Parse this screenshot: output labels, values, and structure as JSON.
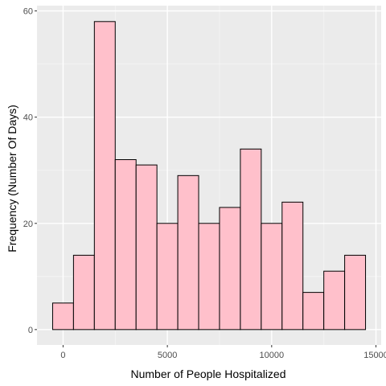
{
  "chart_data": {
    "type": "bar",
    "subtype": "histogram",
    "title": "",
    "xlabel": "Number of People Hospitalized",
    "ylabel": "Frequency (Number Of Days)",
    "bin_width": 1000,
    "bins": [
      {
        "x_start": -500,
        "x_end": 500,
        "count": 5
      },
      {
        "x_start": 500,
        "x_end": 1500,
        "count": 14
      },
      {
        "x_start": 1500,
        "x_end": 2500,
        "count": 58
      },
      {
        "x_start": 2500,
        "x_end": 3500,
        "count": 32
      },
      {
        "x_start": 3500,
        "x_end": 4500,
        "count": 31
      },
      {
        "x_start": 4500,
        "x_end": 5500,
        "count": 20
      },
      {
        "x_start": 5500,
        "x_end": 6500,
        "count": 29
      },
      {
        "x_start": 6500,
        "x_end": 7500,
        "count": 20
      },
      {
        "x_start": 7500,
        "x_end": 8500,
        "count": 23
      },
      {
        "x_start": 8500,
        "x_end": 9500,
        "count": 34
      },
      {
        "x_start": 9500,
        "x_end": 10500,
        "count": 20
      },
      {
        "x_start": 10500,
        "x_end": 11500,
        "count": 24
      },
      {
        "x_start": 11500,
        "x_end": 12500,
        "count": 7
      },
      {
        "x_start": 12500,
        "x_end": 13500,
        "count": 11
      },
      {
        "x_start": 13500,
        "x_end": 14500,
        "count": 14
      }
    ],
    "xlim": [
      -1250,
      15250
    ],
    "ylim": [
      -2.9,
      61
    ],
    "x_ticks": [
      0,
      5000,
      10000,
      15000
    ],
    "x_tick_labels": [
      "0",
      "5000",
      "10000",
      "15000"
    ],
    "y_ticks": [
      0,
      20,
      40,
      60
    ],
    "y_tick_labels": [
      "0",
      "20",
      "40",
      "60"
    ],
    "grid": true,
    "colors": {
      "bar_fill": "#ffc0cb",
      "bar_stroke": "#000000",
      "panel_background": "#ebebeb",
      "grid_major": "#ffffff",
      "grid_minor": "#f5f5f5"
    }
  }
}
